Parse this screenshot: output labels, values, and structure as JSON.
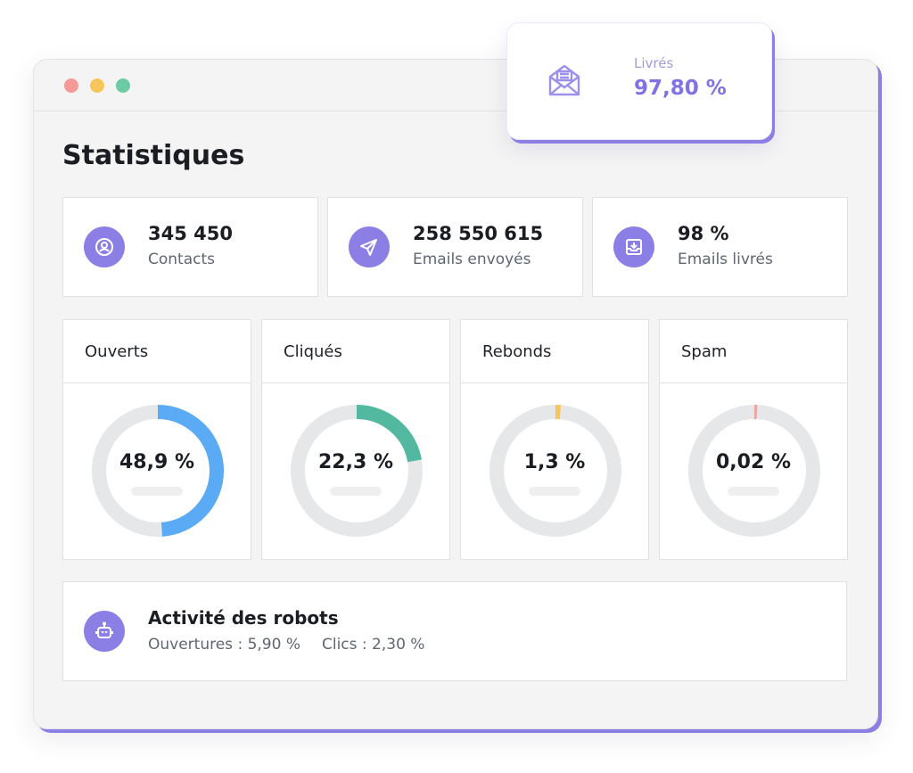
{
  "window": {
    "dots": [
      {
        "name": "close",
        "color": "#f59a96"
      },
      {
        "name": "minimize",
        "color": "#f7c55a"
      },
      {
        "name": "maximize",
        "color": "#6ccba4"
      }
    ]
  },
  "page_title": "Statistiques",
  "delivered_popup": {
    "label": "Livrés",
    "value": "97,80 %",
    "icon": "mail-open-icon"
  },
  "kpis": [
    {
      "value": "345 450",
      "label": "Contacts",
      "icon": "contact-icon"
    },
    {
      "value": "258 550 615",
      "label": "Emails envoyés",
      "icon": "send-icon"
    },
    {
      "value": "98 %",
      "label": "Emails livrés",
      "icon": "inbox-download-icon"
    }
  ],
  "metrics": [
    {
      "title": "Ouverts",
      "value_label": "48,9 %",
      "fraction": 0.489,
      "color": "#5aaaf5"
    },
    {
      "title": "Cliqués",
      "value_label": "22,3 %",
      "fraction": 0.223,
      "color": "#52b9a0"
    },
    {
      "title": "Rebonds",
      "value_label": "1,3 %",
      "fraction": 0.013,
      "color": "#f7c55a"
    },
    {
      "title": "Spam",
      "value_label": "0,02 %",
      "fraction": 0.0002,
      "color": "#f0a5a5"
    }
  ],
  "track_color": "#e6e7e9",
  "accent_color": "#8b7fe6",
  "bots": {
    "title": "Activité des robots",
    "opens": "Ouvertures : 5,90 %",
    "clicks": "Clics : 2,30 %",
    "icon": "robot-icon"
  }
}
